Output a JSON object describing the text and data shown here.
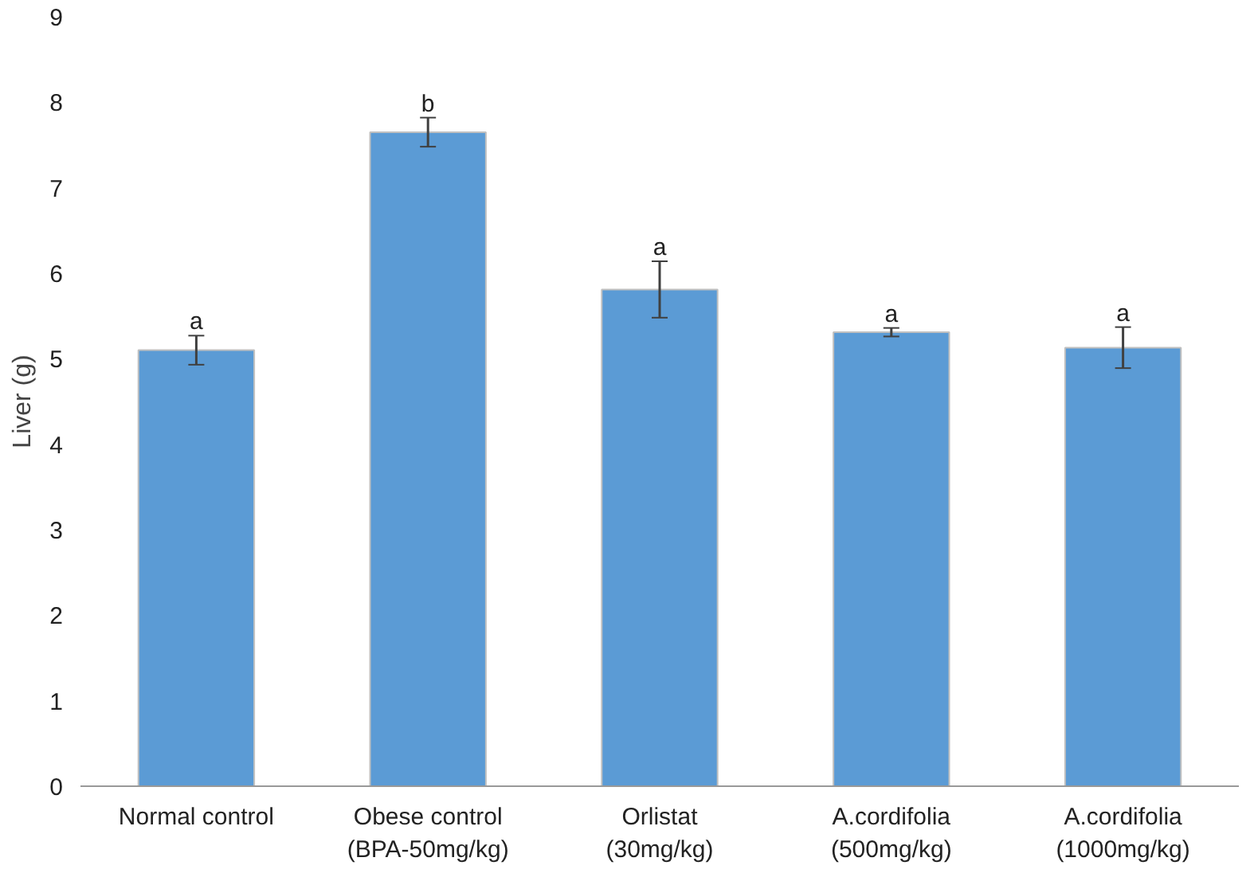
{
  "chart_data": {
    "type": "bar",
    "ylabel": "Liver (g)",
    "categories": [
      "Normal control",
      "Obese control\n(BPA-50mg/kg)",
      "Orlistat\n(30mg/kg)",
      "A.cordifolia\n(500mg/kg)",
      "A.cordifolia\n(1000mg/kg)"
    ],
    "values": [
      5.1,
      7.65,
      5.81,
      5.31,
      5.13
    ],
    "errors": [
      0.17,
      0.17,
      0.33,
      0.05,
      0.24
    ],
    "color": "#5b9bd5",
    "ylim": [
      0,
      9
    ],
    "yticks": [
      0,
      1,
      2,
      3,
      4,
      5,
      6,
      7,
      8,
      9
    ],
    "grid": false,
    "annotations": [
      {
        "text": "a",
        "x": "Normal control",
        "y": 5.27
      },
      {
        "text": "b",
        "x": "Obese control\n(BPA-50mg/kg)",
        "y": 7.82
      },
      {
        "text": "a",
        "x": "Orlistat\n(30mg/kg)",
        "y": 6.14
      },
      {
        "text": "a",
        "x": "A.cordifolia\n(500mg/kg)",
        "y": 5.36
      },
      {
        "text": "a",
        "x": "A.cordifolia\n(1000mg/kg)",
        "y": 5.37
      }
    ]
  }
}
